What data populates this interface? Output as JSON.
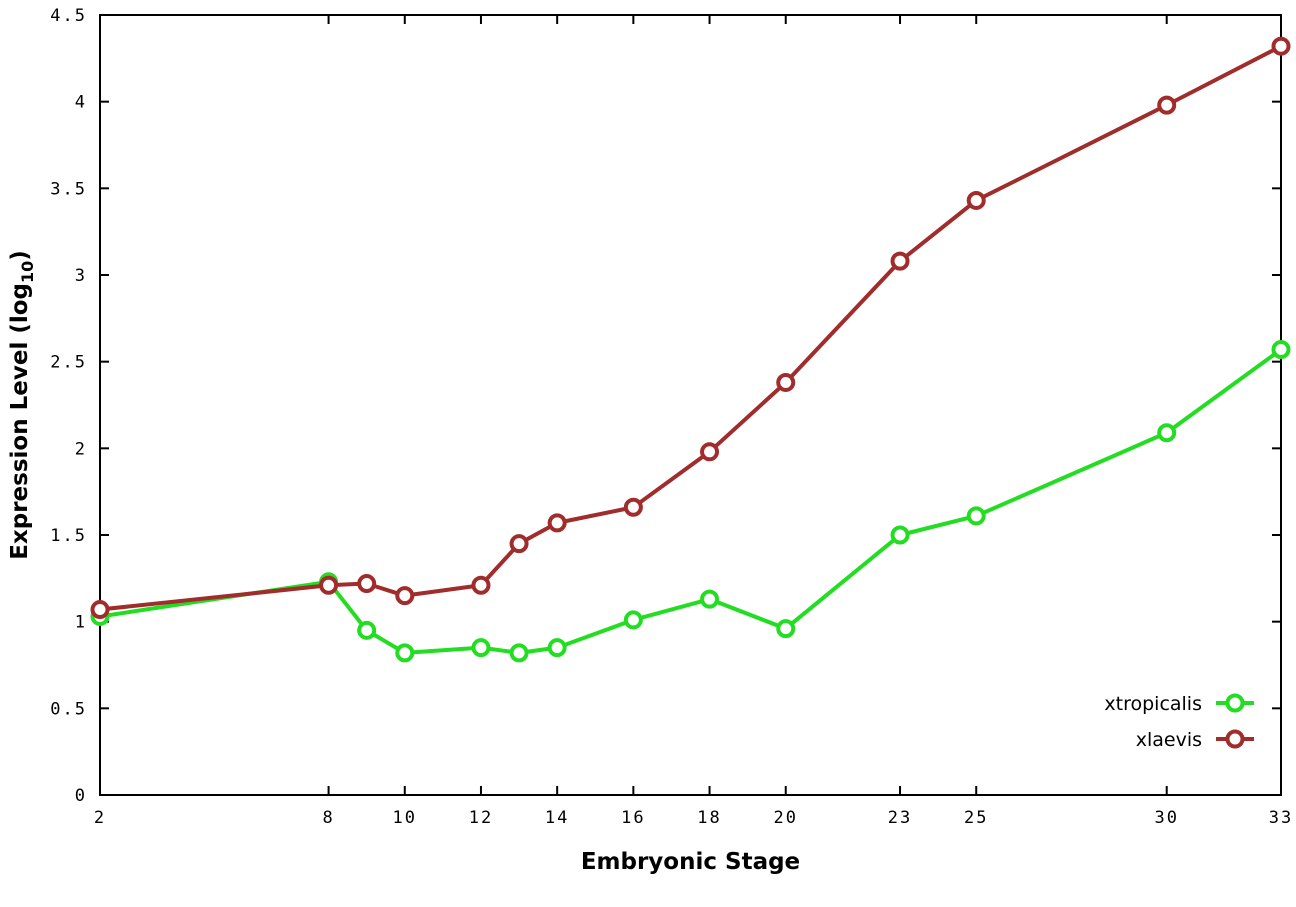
{
  "chart_data": {
    "type": "line",
    "title": "",
    "xlabel": "Embryonic Stage",
    "ylabel_parts": {
      "main": "Expression Level (log",
      "sub": "10",
      "close": ")"
    },
    "xlim": [
      2,
      33
    ],
    "ylim": [
      0,
      4.5
    ],
    "x_tick_labels": [
      "2",
      "8",
      "10",
      "12",
      "14",
      "16",
      "18",
      "20",
      "23",
      "25",
      "30",
      "33"
    ],
    "x_tick_values": [
      2,
      8,
      10,
      12,
      14,
      16,
      18,
      20,
      23,
      25,
      30,
      33
    ],
    "y_tick_labels": [
      "0",
      "0.5",
      "1",
      "1.5",
      "2",
      "2.5",
      "3",
      "3.5",
      "4",
      "4.5"
    ],
    "y_tick_values": [
      0,
      0.5,
      1,
      1.5,
      2,
      2.5,
      3,
      3.5,
      4,
      4.5
    ],
    "x": [
      2,
      8,
      9,
      10,
      12,
      13,
      14,
      16,
      18,
      20,
      23,
      25,
      30,
      33
    ],
    "series": [
      {
        "name": "xtropicalis",
        "color": "#22dd22",
        "values": [
          1.03,
          1.23,
          0.95,
          0.82,
          0.85,
          0.82,
          0.85,
          1.01,
          1.13,
          0.96,
          1.5,
          1.61,
          2.09,
          2.57
        ]
      },
      {
        "name": "xlaevis",
        "color": "#a12c2c",
        "values": [
          1.07,
          1.21,
          1.22,
          1.15,
          1.21,
          1.45,
          1.57,
          1.66,
          1.98,
          2.38,
          3.08,
          3.43,
          3.98,
          4.32
        ]
      }
    ],
    "legend": {
      "position": "bottom-right",
      "entries": [
        "xtropicalis",
        "xlaevis"
      ]
    },
    "grid": false,
    "axis_color": "#000000",
    "background": "#ffffff",
    "marker": "open-circle"
  }
}
